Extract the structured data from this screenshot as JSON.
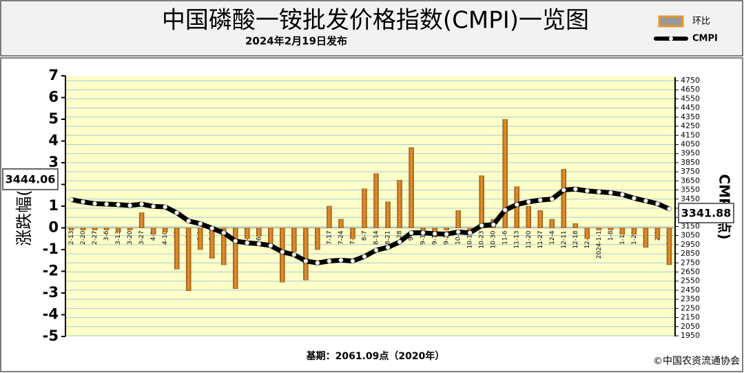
{
  "chart_data": {
    "type": "bar",
    "title": "中国磷酸一铵批发价格指数(CMPI)一览图",
    "subtitle": "2024年2月19日发布",
    "ylabel": "涨跌幅(%)",
    "y2label": "CMPI(点)",
    "footnote": "基期：2061.09点（2020年）",
    "source": "©中国农资流通协会",
    "categories": [
      "2-13",
      "2-20",
      "2-27",
      "3-6",
      "3-13",
      "3-20",
      "3-27",
      "4-3",
      "4-10",
      "4-17",
      "4-24",
      "5-1",
      "5-8",
      "5-15",
      "5-22",
      "5-29",
      "6-5",
      "6-12",
      "6-19",
      "6-26",
      "7-3",
      "7-10",
      "7-17",
      "7-24",
      "7-31",
      "8-7",
      "8-14",
      "8-21",
      "8-28",
      "9-4",
      "9-11",
      "9-18",
      "9-25",
      "10-9",
      "10-16",
      "10-23",
      "10-30",
      "11-6",
      "11-13",
      "11-20",
      "11-27",
      "12-4",
      "12-11",
      "12-18",
      "12-25",
      "2024-1-1",
      "1-8",
      "1-15",
      "1-22",
      "1-29",
      "2-5",
      "2-19"
    ],
    "series": [
      {
        "name": "环比",
        "type": "bar",
        "color": "#e8962e",
        "values": [
          -0.1,
          -0.1,
          -0.1,
          -0.1,
          -0.2,
          -0.1,
          0.7,
          -0.3,
          -0.2,
          -1.9,
          -2.9,
          -1.0,
          -1.4,
          -1.7,
          -2.8,
          -0.5,
          -0.4,
          -0.8,
          -2.5,
          -1.1,
          -2.4,
          -1.0,
          1.0,
          0.4,
          -0.5,
          1.8,
          2.5,
          1.2,
          2.2,
          3.7,
          -0.1,
          -0.2,
          -0.1,
          0.8,
          -0.1,
          2.4,
          0.4,
          5.0,
          1.9,
          1.0,
          0.8,
          0.4,
          2.7,
          0.2,
          -0.5,
          -0.1,
          -0.1,
          -0.3,
          -0.3,
          -0.9,
          -0.5,
          -1.7
        ]
      },
      {
        "name": "CMPI",
        "type": "line",
        "axis": "y2",
        "color": "#000000",
        "values": [
          3444.06,
          3420,
          3400,
          3395,
          3390,
          3380,
          3395,
          3370,
          3365,
          3300,
          3210,
          3180,
          3130,
          3080,
          2990,
          2970,
          2960,
          2940,
          2870,
          2840,
          2770,
          2750,
          2770,
          2780,
          2770,
          2820,
          2890,
          2920,
          2980,
          3080,
          3080,
          3070,
          3065,
          3090,
          3080,
          3160,
          3170,
          3330,
          3390,
          3420,
          3440,
          3450,
          3550,
          3560,
          3540,
          3530,
          3520,
          3500,
          3460,
          3430,
          3400,
          3341.88
        ]
      }
    ],
    "ylim": [
      -5,
      7
    ],
    "yticks": [
      -5,
      -4,
      -3,
      -2,
      -1,
      0,
      1,
      2,
      3,
      4,
      5,
      6,
      7
    ],
    "y2lim": [
      1950,
      4750
    ],
    "y2ticks": [
      1950,
      2050,
      2150,
      2250,
      2350,
      2450,
      2550,
      2650,
      2750,
      2850,
      2950,
      3050,
      3150,
      3250,
      3350,
      3450,
      3550,
      3650,
      3750,
      3850,
      3950,
      4050,
      4150,
      4250,
      4350,
      4450,
      4550,
      4650,
      4750
    ],
    "grid": true,
    "legend": "top-right"
  }
}
